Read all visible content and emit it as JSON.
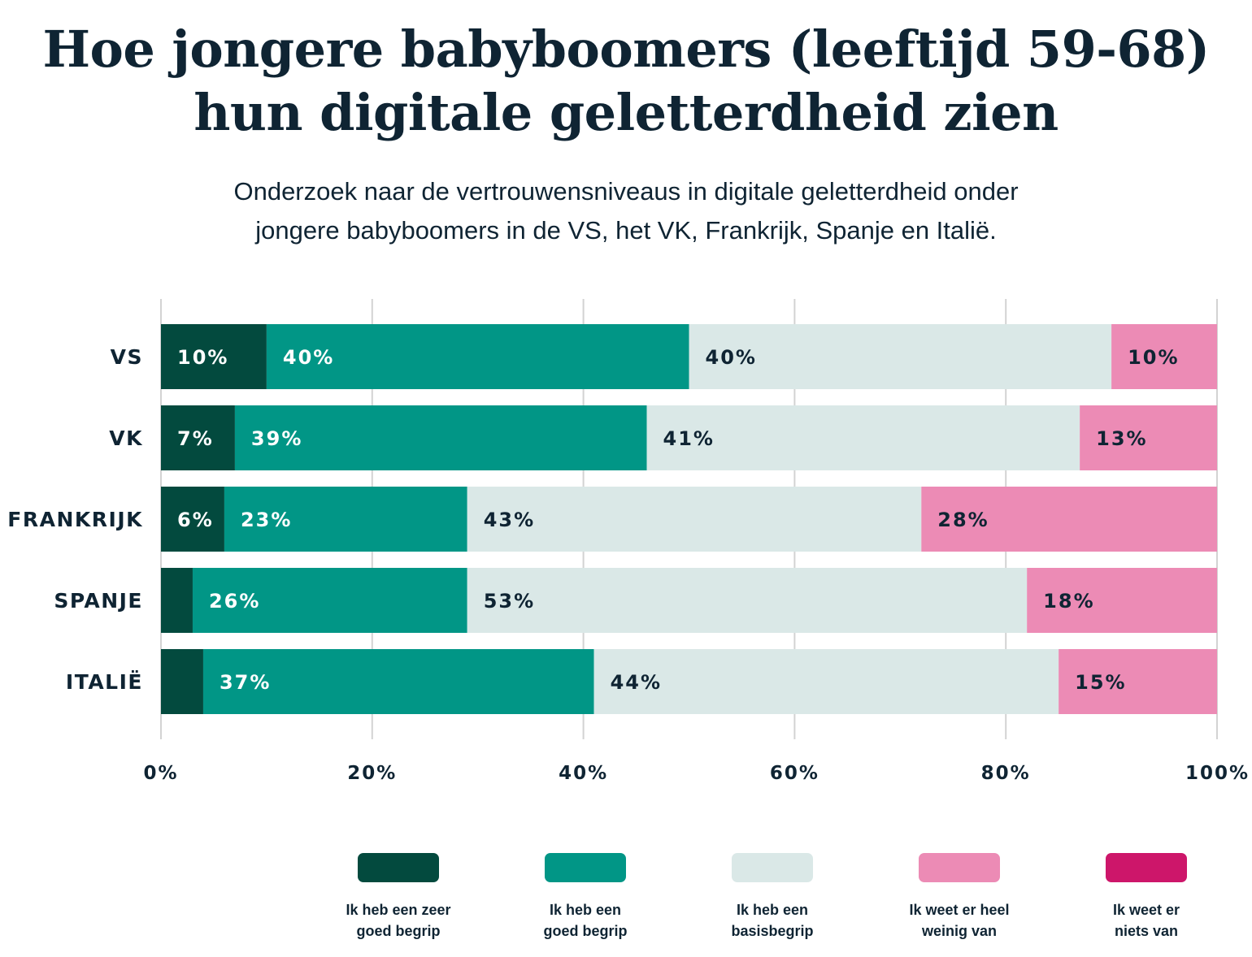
{
  "header": {
    "title_lines": [
      "Hoe jongere babyboomers (leeftijd 59-68)",
      "hun digitale geletterdheid zien"
    ],
    "subtitle_lines": [
      "Onderzoek naar de vertrouwensniveaus in digitale geletterdheid onder",
      "jongere babyboomers in de VS, het VK, Frankrijk, Spanje en Italië."
    ]
  },
  "chart_data": {
    "type": "bar",
    "orientation": "horizontal",
    "stacked": true,
    "categories": [
      "VS",
      "VK",
      "FRANKRIJK",
      "SPANJE",
      "ITALIË"
    ],
    "series": [
      {
        "name_lines": [
          "Ik heb een zeer",
          "goed begrip"
        ],
        "color": "#034a3e",
        "label_color": "#ffffff",
        "values": [
          10,
          7,
          6,
          3,
          4
        ],
        "labels": [
          "10%",
          "7%",
          "6%",
          "",
          ""
        ]
      },
      {
        "name_lines": [
          "Ik heb een",
          "goed begrip"
        ],
        "color": "#019686",
        "label_color": "#ffffff",
        "values": [
          40,
          39,
          23,
          26,
          37
        ],
        "labels": [
          "40%",
          "39%",
          "23%",
          "26%",
          "37%"
        ]
      },
      {
        "name_lines": [
          "Ik heb een",
          "basisbegrip"
        ],
        "color": "#dae8e7",
        "label_color": "#0f2433",
        "values": [
          40,
          41,
          43,
          53,
          44
        ],
        "labels": [
          "40%",
          "41%",
          "43%",
          "53%",
          "44%"
        ]
      },
      {
        "name_lines": [
          "Ik weet er heel",
          "weinig van"
        ],
        "color": "#ec8bb5",
        "label_color": "#0f2433",
        "values": [
          10,
          13,
          28,
          18,
          15
        ],
        "labels": [
          "10%",
          "13%",
          "28%",
          "18%",
          "15%"
        ]
      },
      {
        "name_lines": [
          "Ik weet er",
          "niets van"
        ],
        "color": "#cd166a",
        "label_color": "#ffffff",
        "values": [
          0,
          0,
          0,
          0,
          0
        ],
        "labels": [
          "",
          "",
          "",
          "",
          ""
        ]
      }
    ],
    "x_ticks": [
      0,
      20,
      40,
      60,
      80,
      100
    ],
    "x_tick_labels": [
      "0%",
      "20%",
      "40%",
      "60%",
      "80%",
      "100%"
    ],
    "xlim": [
      0,
      100
    ],
    "grid": true,
    "legend_position": "bottom"
  }
}
